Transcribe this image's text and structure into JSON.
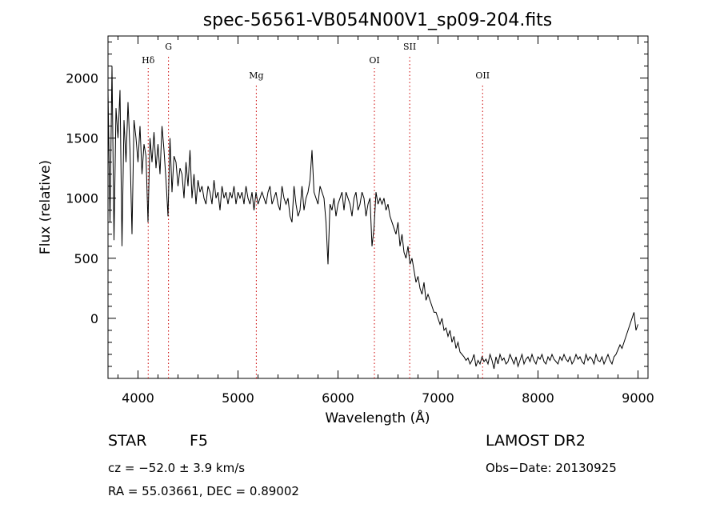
{
  "chart_data": {
    "type": "line",
    "title": "spec-56561-VB054N00V1_sp09-204.fits",
    "xlabel": "Wavelength (Å)",
    "ylabel": "Flux (relative)",
    "xlim": [
      3700,
      9100
    ],
    "ylim": [
      -500,
      2350
    ],
    "x_ticks": [
      4000,
      5000,
      6000,
      7000,
      8000,
      9000
    ],
    "y_ticks": [
      0,
      500,
      1000,
      1500,
      2000
    ],
    "grid": false,
    "line_color": "#000000",
    "marker_color": "#cc0000",
    "spectral_lines": [
      {
        "label": "Hδ",
        "wavelength": 4102
      },
      {
        "label": "G",
        "wavelength": 4305
      },
      {
        "label": "Mg",
        "wavelength": 5183
      },
      {
        "label": "OI",
        "wavelength": 6364
      },
      {
        "label": "SII",
        "wavelength": 6717
      },
      {
        "label": "OII",
        "wavelength": 7446
      }
    ],
    "series": [
      {
        "x": [
          3700,
          3720,
          3740,
          3760,
          3780,
          3800,
          3820,
          3840,
          3860,
          3880,
          3900,
          3920,
          3940,
          3960,
          3980,
          4000,
          4020,
          4040,
          4060,
          4080,
          4100,
          4120,
          4140,
          4160,
          4180,
          4200,
          4220,
          4240,
          4260,
          4280,
          4300,
          4320,
          4340,
          4360,
          4380,
          4400,
          4420,
          4440,
          4460,
          4480,
          4500,
          4520,
          4540,
          4560,
          4580,
          4600,
          4620,
          4640,
          4660,
          4680,
          4700,
          4720,
          4740,
          4760,
          4780,
          4800,
          4820,
          4840,
          4860,
          4880,
          4900,
          4920,
          4940,
          4960,
          4980,
          5000,
          5020,
          5040,
          5060,
          5080,
          5100,
          5120,
          5140,
          5160,
          5180,
          5200,
          5220,
          5240,
          5260,
          5280,
          5300,
          5320,
          5340,
          5360,
          5380,
          5400,
          5420,
          5440,
          5460,
          5480,
          5500,
          5520,
          5540,
          5560,
          5580,
          5600,
          5620,
          5640,
          5660,
          5680,
          5700,
          5720,
          5740,
          5760,
          5780,
          5800,
          5820,
          5840,
          5860,
          5880,
          5900,
          5920,
          5940,
          5960,
          5980,
          6000,
          6020,
          6040,
          6060,
          6080,
          6100,
          6120,
          6140,
          6160,
          6180,
          6200,
          6220,
          6240,
          6260,
          6280,
          6300,
          6320,
          6340,
          6360,
          6380,
          6400,
          6420,
          6440,
          6460,
          6480,
          6500,
          6520,
          6540,
          6560,
          6580,
          6600,
          6620,
          6640,
          6660,
          6680,
          6700,
          6720,
          6740,
          6760,
          6780,
          6800,
          6820,
          6840,
          6860,
          6880,
          6900,
          6920,
          6940,
          6960,
          6980,
          7000,
          7020,
          7040,
          7060,
          7080,
          7100,
          7120,
          7140,
          7160,
          7180,
          7200,
          7220,
          7240,
          7260,
          7280,
          7300,
          7320,
          7340,
          7360,
          7380,
          7400,
          7420,
          7440,
          7460,
          7480,
          7500,
          7520,
          7540,
          7560,
          7580,
          7600,
          7620,
          7640,
          7660,
          7680,
          7700,
          7720,
          7740,
          7760,
          7780,
          7800,
          7820,
          7840,
          7860,
          7880,
          7900,
          7920,
          7940,
          7960,
          7980,
          8000,
          8020,
          8040,
          8060,
          8080,
          8100,
          8120,
          8140,
          8160,
          8180,
          8200,
          8220,
          8240,
          8260,
          8280,
          8300,
          8320,
          8340,
          8360,
          8380,
          8400,
          8420,
          8440,
          8460,
          8480,
          8500,
          8520,
          8540,
          8560,
          8580,
          8600,
          8620,
          8640,
          8660,
          8680,
          8700,
          8720,
          8740,
          8760,
          8780,
          8800,
          8820,
          8840,
          8860,
          8880,
          8900,
          8920,
          8940,
          8960,
          8980,
          9000
        ],
        "y": [
          1900,
          800,
          2100,
          650,
          1750,
          1500,
          1900,
          600,
          1650,
          1300,
          1800,
          1400,
          700,
          1650,
          1500,
          1300,
          1600,
          1200,
          1450,
          1350,
          800,
          1500,
          1300,
          1550,
          1250,
          1450,
          1200,
          1600,
          1400,
          1150,
          850,
          1500,
          1050,
          1350,
          1300,
          1100,
          1250,
          1200,
          1000,
          1300,
          1100,
          1400,
          1000,
          1200,
          950,
          1150,
          1050,
          1100,
          1000,
          950,
          1100,
          1050,
          950,
          1150,
          1000,
          1050,
          900,
          1100,
          1000,
          1050,
          950,
          1050,
          1000,
          1100,
          950,
          1050,
          1000,
          1050,
          950,
          1100,
          1000,
          950,
          1050,
          900,
          1050,
          950,
          1000,
          1050,
          1000,
          950,
          1050,
          1100,
          950,
          1000,
          1050,
          950,
          900,
          1100,
          1000,
          950,
          1000,
          850,
          800,
          1100,
          950,
          850,
          900,
          1100,
          900,
          1000,
          1050,
          1150,
          1400,
          1050,
          1000,
          950,
          1100,
          1050,
          1000,
          800,
          450,
          950,
          900,
          1000,
          850,
          950,
          1000,
          1050,
          900,
          1050,
          1000,
          950,
          850,
          1000,
          1050,
          900,
          950,
          1050,
          1000,
          850,
          950,
          1000,
          600,
          750,
          1050,
          950,
          1000,
          950,
          1000,
          900,
          950,
          850,
          800,
          750,
          700,
          800,
          600,
          700,
          550,
          500,
          600,
          450,
          500,
          400,
          300,
          350,
          250,
          200,
          300,
          150,
          200,
          150,
          100,
          50,
          50,
          0,
          -50,
          0,
          -100,
          -80,
          -150,
          -100,
          -200,
          -150,
          -250,
          -200,
          -280,
          -300,
          -320,
          -350,
          -330,
          -380,
          -350,
          -300,
          -400,
          -350,
          -380,
          -320,
          -360,
          -340,
          -380,
          -300,
          -350,
          -420,
          -320,
          -380,
          -300,
          -350,
          -330,
          -380,
          -360,
          -300,
          -340,
          -380,
          -320,
          -400,
          -350,
          -300,
          -380,
          -340,
          -320,
          -360,
          -300,
          -350,
          -380,
          -320,
          -340,
          -300,
          -360,
          -380,
          -320,
          -350,
          -300,
          -340,
          -360,
          -380,
          -320,
          -350,
          -300,
          -340,
          -360,
          -320,
          -380,
          -350,
          -300,
          -340,
          -320,
          -360,
          -380,
          -300,
          -350,
          -320,
          -340,
          -380,
          -300,
          -350,
          -360,
          -320,
          -380,
          -340,
          -300,
          -350,
          -380,
          -320,
          -300,
          -260,
          -220,
          -250,
          -200,
          -150,
          -100,
          -50,
          0,
          50,
          -100,
          -50
        ]
      }
    ]
  },
  "info": {
    "object_class": "STAR",
    "subclass": "F5",
    "survey": "LAMOST DR2",
    "redshift_line": "cz = −52.0 ± 3.9 km/s",
    "obs_date": "Obs−Date: 20130925",
    "coords_line": "RA =  55.03661, DEC =   0.89002"
  }
}
